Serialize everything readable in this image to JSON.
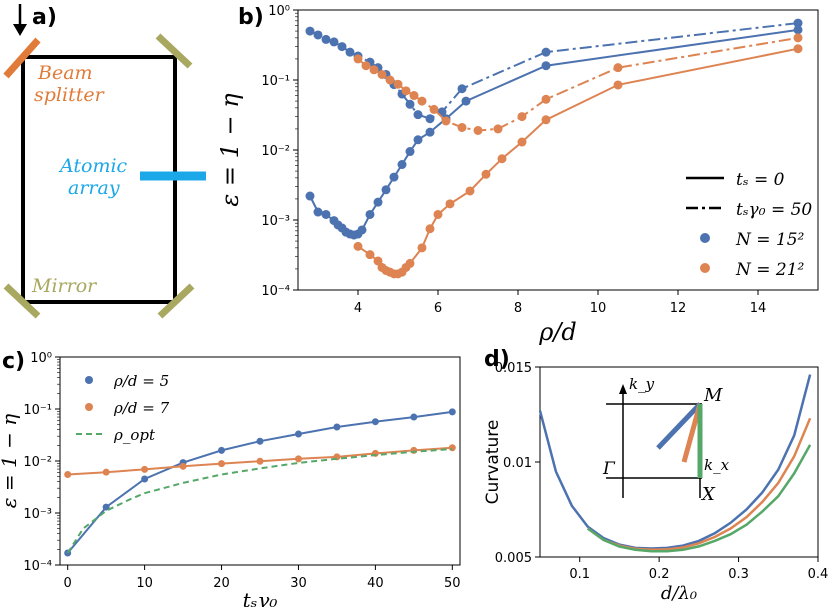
{
  "panels": {
    "a": "a)",
    "b": "b)",
    "c": "c)",
    "d": "d)"
  },
  "diagram": {
    "beam_splitter": "Beam\nsplitter",
    "atomic_array": "Atomic\narray",
    "mirror": "Mirror",
    "colors": {
      "splitter": "#e07b39",
      "array": "#1ca8e8",
      "mirror": "#a8a860",
      "frame": "#000000"
    }
  },
  "chart_data": [
    {
      "id": "b",
      "type": "line",
      "scale_y": "log",
      "xlim": [
        2.5,
        15.5
      ],
      "ylim_exp": [
        -4,
        0
      ],
      "xticks": [
        4,
        6,
        8,
        10,
        12,
        14
      ],
      "yticks": [
        "10⁰",
        "10⁻¹",
        "10⁻²",
        "10⁻³",
        "10⁻⁴"
      ],
      "ylabel": "ε = 1 − η",
      "xlabel": "ρ/d",
      "legend_position": "right",
      "legend": [
        {
          "label": "tₛ = 0",
          "style": "solid"
        },
        {
          "label": "tₛγ₀ = 50",
          "style": "dashdot"
        },
        {
          "label": "N = 15²",
          "color": "#4c72b0"
        },
        {
          "label": "N = 21²",
          "color": "#dd8452"
        }
      ],
      "series": [
        {
          "name": "N=15², ts=0",
          "color": "#4c72b0",
          "style": "solid",
          "x": [
            2.8,
            3.0,
            3.2,
            3.4,
            3.5,
            3.6,
            3.7,
            3.8,
            3.9,
            4.0,
            4.1,
            4.3,
            4.5,
            4.7,
            4.9,
            5.1,
            5.3,
            5.5,
            5.8,
            6.2,
            6.7,
            8.7,
            15.0
          ],
          "y": [
            0.0022,
            0.0013,
            0.0012,
            0.00098,
            0.00085,
            0.00077,
            0.00067,
            0.00063,
            0.00061,
            0.00063,
            0.00072,
            0.0012,
            0.0018,
            0.0027,
            0.0041,
            0.0062,
            0.0095,
            0.014,
            0.018,
            0.028,
            0.05,
            0.16,
            0.52
          ]
        },
        {
          "name": "N=15², tsγ0=50",
          "color": "#4c72b0",
          "style": "dashdot",
          "x": [
            2.8,
            3.0,
            3.2,
            3.4,
            3.6,
            3.8,
            4.0,
            4.3,
            4.5,
            4.7,
            4.9,
            5.1,
            5.3,
            5.5,
            5.8,
            6.1,
            6.6,
            8.7,
            15.0
          ],
          "y": [
            0.5,
            0.44,
            0.38,
            0.35,
            0.3,
            0.25,
            0.22,
            0.18,
            0.15,
            0.12,
            0.086,
            0.063,
            0.045,
            0.032,
            0.028,
            0.035,
            0.075,
            0.25,
            0.65
          ]
        },
        {
          "name": "N=21², ts=0",
          "color": "#dd8452",
          "style": "solid",
          "x": [
            4.0,
            4.3,
            4.5,
            4.6,
            4.7,
            4.8,
            4.9,
            5.0,
            5.1,
            5.2,
            5.3,
            5.6,
            5.8,
            6.0,
            6.3,
            6.8,
            7.2,
            7.6,
            8.1,
            8.7,
            10.5,
            15.0
          ],
          "y": [
            0.00042,
            0.00032,
            0.00026,
            0.00021,
            0.00019,
            0.00018,
            0.00017,
            0.00017,
            0.00018,
            0.00021,
            0.00024,
            0.0004,
            0.00075,
            0.0012,
            0.0017,
            0.0026,
            0.0045,
            0.0075,
            0.013,
            0.027,
            0.085,
            0.28
          ]
        },
        {
          "name": "N=21², tsγ0=50",
          "color": "#dd8452",
          "style": "dashdot",
          "x": [
            4.0,
            4.2,
            4.4,
            4.6,
            4.8,
            5.0,
            5.2,
            5.4,
            5.6,
            5.9,
            6.2,
            6.6,
            7.0,
            7.5,
            8.1,
            8.7,
            10.5,
            15.0
          ],
          "y": [
            0.2,
            0.16,
            0.14,
            0.12,
            0.1,
            0.087,
            0.07,
            0.06,
            0.05,
            0.038,
            0.026,
            0.021,
            0.019,
            0.02,
            0.03,
            0.053,
            0.15,
            0.4
          ]
        }
      ]
    },
    {
      "id": "c",
      "type": "line",
      "scale_y": "log",
      "xlim": [
        -1,
        51
      ],
      "ylim_exp": [
        -4,
        0
      ],
      "xticks": [
        0,
        10,
        20,
        30,
        40,
        50
      ],
      "yticks": [
        "10⁰",
        "10⁻¹",
        "10⁻²",
        "10⁻³",
        "10⁻⁴"
      ],
      "ylabel": "ε = 1 − η",
      "xlabel": "tₛγ₀",
      "legend_position": "top-left",
      "legend": [
        {
          "label": "ρ/d = 5",
          "color": "#4c72b0"
        },
        {
          "label": "ρ/d = 7",
          "color": "#dd8452"
        },
        {
          "label": "ρ_opt",
          "color": "#55a868",
          "style": "dashed"
        }
      ],
      "series": [
        {
          "name": "ρ/d = 5",
          "color": "#4c72b0",
          "style": "solid",
          "x": [
            0,
            5,
            10,
            15,
            20,
            25,
            30,
            35,
            40,
            45,
            50
          ],
          "y": [
            0.00017,
            0.0013,
            0.0045,
            0.0093,
            0.016,
            0.024,
            0.033,
            0.045,
            0.057,
            0.07,
            0.088
          ]
        },
        {
          "name": "ρ/d = 7",
          "color": "#dd8452",
          "style": "solid",
          "x": [
            0,
            5,
            10,
            15,
            20,
            25,
            30,
            35,
            40,
            45,
            50
          ],
          "y": [
            0.0055,
            0.0061,
            0.0069,
            0.0079,
            0.0089,
            0.0099,
            0.011,
            0.012,
            0.014,
            0.016,
            0.018
          ]
        },
        {
          "name": "ρ_opt",
          "color": "#55a868",
          "style": "dashed",
          "x": [
            0,
            2,
            5,
            8,
            10,
            15,
            20,
            25,
            30,
            35,
            40,
            45,
            50
          ],
          "y": [
            0.00017,
            0.0005,
            0.0011,
            0.0018,
            0.0024,
            0.0038,
            0.0055,
            0.0072,
            0.0092,
            0.011,
            0.013,
            0.015,
            0.017
          ]
        }
      ]
    },
    {
      "id": "d",
      "type": "line",
      "scale_y": "linear",
      "xlim": [
        0.05,
        0.4
      ],
      "ylim": [
        0.005,
        0.015
      ],
      "xticks": [
        0.1,
        0.2,
        0.3,
        0.4
      ],
      "yticks": [
        0.005,
        0.01,
        0.015
      ],
      "xlabel": "d/λ₀",
      "ylabel": "Curvature",
      "inset": {
        "ky": "k_y",
        "kx": "k_x",
        "M": "M",
        "Gamma": "Γ",
        "X": "X"
      },
      "series": [
        {
          "name": "blue",
          "color": "#4c72b0",
          "x": [
            0.05,
            0.07,
            0.09,
            0.11,
            0.13,
            0.15,
            0.17,
            0.19,
            0.21,
            0.23,
            0.25,
            0.27,
            0.29,
            0.31,
            0.33,
            0.35,
            0.37,
            0.39
          ],
          "y": [
            0.0127,
            0.0095,
            0.0077,
            0.0066,
            0.006,
            0.00565,
            0.00548,
            0.00545,
            0.00548,
            0.0056,
            0.00585,
            0.00625,
            0.0068,
            0.0075,
            0.0084,
            0.0096,
            0.0114,
            0.0146
          ]
        },
        {
          "name": "orange",
          "color": "#dd8452",
          "x": [
            0.11,
            0.13,
            0.15,
            0.17,
            0.19,
            0.21,
            0.23,
            0.25,
            0.27,
            0.29,
            0.31,
            0.33,
            0.35,
            0.37,
            0.39
          ],
          "y": [
            0.0065,
            0.0059,
            0.0056,
            0.00543,
            0.00538,
            0.0054,
            0.0055,
            0.00572,
            0.00605,
            0.0065,
            0.0071,
            0.0079,
            0.0089,
            0.0103,
            0.0123
          ]
        },
        {
          "name": "green",
          "color": "#55a868",
          "x": [
            0.11,
            0.13,
            0.15,
            0.17,
            0.19,
            0.21,
            0.23,
            0.25,
            0.27,
            0.29,
            0.31,
            0.33,
            0.35,
            0.37,
            0.39
          ],
          "y": [
            0.0065,
            0.0059,
            0.00555,
            0.00538,
            0.0053,
            0.0053,
            0.00538,
            0.00556,
            0.00585,
            0.0062,
            0.0067,
            0.0074,
            0.0082,
            0.0094,
            0.0109
          ]
        }
      ]
    }
  ]
}
